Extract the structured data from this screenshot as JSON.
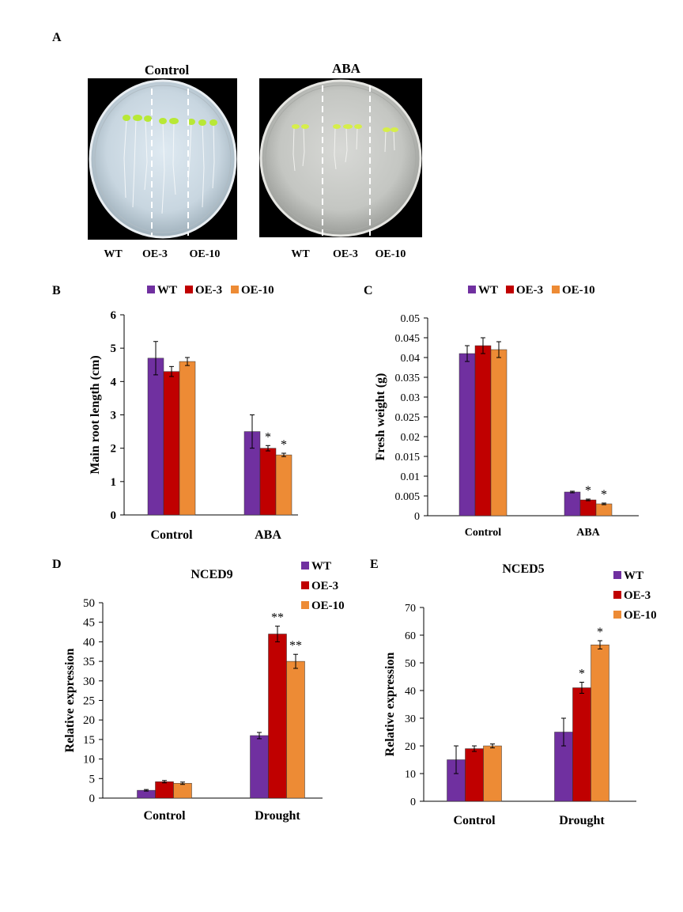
{
  "panel_a": {
    "letter": "A",
    "plates": [
      {
        "title": "Control",
        "labels": [
          "WT",
          "OE-3",
          "OE-10"
        ]
      },
      {
        "title": "ABA",
        "labels": [
          "WT",
          "OE-3",
          "OE-10"
        ]
      }
    ]
  },
  "colors": {
    "WT": "#7030a0",
    "OE-3": "#c00000",
    "OE-10": "#ed8b35"
  },
  "chart_data": [
    {
      "panel": "B",
      "type": "bar",
      "title": "",
      "ylabel": "Main root length (cm)",
      "xlabel": "",
      "categories": [
        "Control",
        "ABA"
      ],
      "ylim": [
        0,
        6
      ],
      "yticks": [
        0,
        1,
        2,
        3,
        4,
        5,
        6
      ],
      "legend": "top",
      "series": [
        {
          "name": "WT",
          "values": [
            4.7,
            2.5
          ],
          "errors": [
            0.5,
            0.5
          ],
          "sig": [
            "",
            ""
          ]
        },
        {
          "name": "OE-3",
          "values": [
            4.3,
            2.0
          ],
          "errors": [
            0.15,
            0.08
          ],
          "sig": [
            "",
            "*"
          ]
        },
        {
          "name": "OE-10",
          "values": [
            4.6,
            1.8
          ],
          "errors": [
            0.12,
            0.05
          ],
          "sig": [
            "",
            "*"
          ]
        }
      ]
    },
    {
      "panel": "C",
      "type": "bar",
      "title": "",
      "ylabel": "Fresh weight (g)",
      "xlabel": "",
      "categories": [
        "Control",
        "ABA"
      ],
      "ylim": [
        0,
        0.05
      ],
      "yticks": [
        0,
        0.005,
        0.01,
        0.015,
        0.02,
        0.025,
        0.03,
        0.035,
        0.04,
        0.045,
        0.05
      ],
      "legend": "top",
      "series": [
        {
          "name": "WT",
          "values": [
            0.041,
            0.006
          ],
          "errors": [
            0.002,
            0.0002
          ],
          "sig": [
            "",
            ""
          ]
        },
        {
          "name": "OE-3",
          "values": [
            0.043,
            0.004
          ],
          "errors": [
            0.002,
            0.0002
          ],
          "sig": [
            "",
            "*"
          ]
        },
        {
          "name": "OE-10",
          "values": [
            0.042,
            0.003
          ],
          "errors": [
            0.002,
            0.0002
          ],
          "sig": [
            "",
            "*"
          ]
        }
      ]
    },
    {
      "panel": "D",
      "type": "bar",
      "title": "NCED9",
      "ylabel": "Relative expression",
      "xlabel": "",
      "categories": [
        "Control",
        "Drought"
      ],
      "ylim": [
        0,
        50
      ],
      "yticks": [
        0,
        5,
        10,
        15,
        20,
        25,
        30,
        35,
        40,
        45,
        50
      ],
      "legend": "top-right",
      "series": [
        {
          "name": "WT",
          "values": [
            2.0,
            16.0
          ],
          "errors": [
            0.2,
            0.8
          ],
          "sig": [
            "",
            ""
          ]
        },
        {
          "name": "OE-3",
          "values": [
            4.2,
            42.0
          ],
          "errors": [
            0.3,
            2.0
          ],
          "sig": [
            "",
            "**"
          ]
        },
        {
          "name": "OE-10",
          "values": [
            3.8,
            35.0
          ],
          "errors": [
            0.3,
            1.8
          ],
          "sig": [
            "",
            "**"
          ]
        }
      ]
    },
    {
      "panel": "E",
      "type": "bar",
      "title": "NCED5",
      "ylabel": "Relative expression",
      "xlabel": "",
      "categories": [
        "Control",
        "Drought"
      ],
      "ylim": [
        0,
        70
      ],
      "yticks": [
        0,
        10,
        20,
        30,
        40,
        50,
        60,
        70
      ],
      "legend": "top-right",
      "series": [
        {
          "name": "WT",
          "values": [
            15.0,
            25.0
          ],
          "errors": [
            5.0,
            5.0
          ],
          "sig": [
            "",
            ""
          ]
        },
        {
          "name": "OE-3",
          "values": [
            19.0,
            41.0
          ],
          "errors": [
            1.0,
            2.0
          ],
          "sig": [
            "",
            "*"
          ]
        },
        {
          "name": "OE-10",
          "values": [
            20.0,
            56.5
          ],
          "errors": [
            0.7,
            1.5
          ],
          "sig": [
            "",
            "*"
          ]
        }
      ]
    }
  ]
}
